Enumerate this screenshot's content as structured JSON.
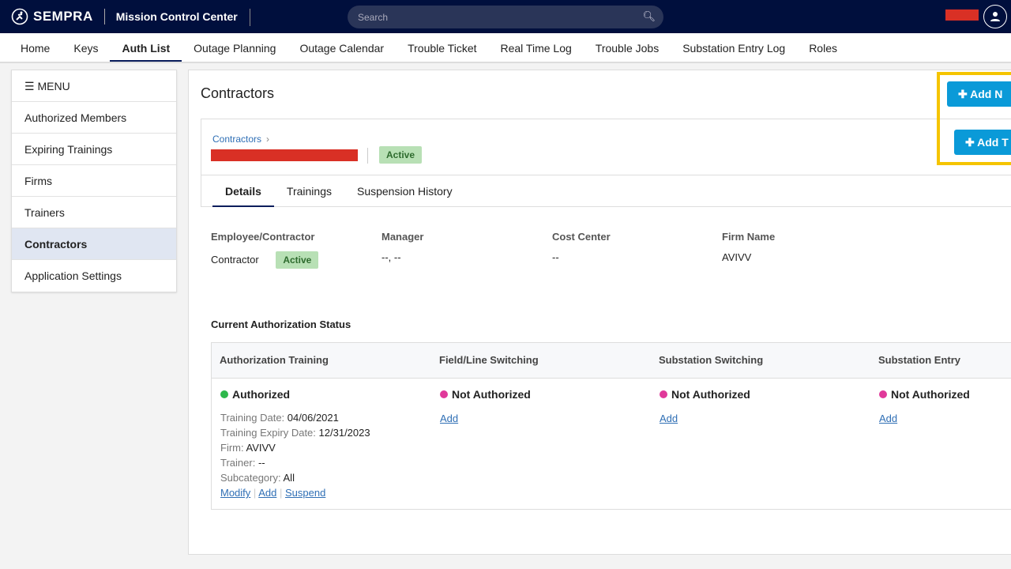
{
  "header": {
    "brand": "SEMPRA",
    "app_title": "Mission Control Center",
    "search_placeholder": "Search"
  },
  "nav": [
    "Home",
    "Keys",
    "Auth List",
    "Outage Planning",
    "Outage Calendar",
    "Trouble Ticket",
    "Real Time Log",
    "Trouble Jobs",
    "Substation Entry Log",
    "Roles"
  ],
  "sidebar": {
    "menu_label": "MENU",
    "items": [
      "Authorized Members",
      "Expiring Trainings",
      "Firms",
      "Trainers",
      "Contractors",
      "Application Settings"
    ]
  },
  "page": {
    "title": "Contractors",
    "breadcrumb": "Contractors",
    "status": "Active",
    "tabs": [
      "Details",
      "Trainings",
      "Suspension History"
    ],
    "buttons": {
      "add_new": "Add N",
      "add_t": "Add T"
    }
  },
  "details": {
    "labels": [
      "Employee/Contractor",
      "Manager",
      "Cost Center",
      "Firm Name"
    ],
    "employee_type": "Contractor",
    "status": "Active",
    "manager": "--, --",
    "cost_center": "--",
    "firm_name": "AVIVV"
  },
  "auth": {
    "title": "Current Authorization Status",
    "columns": [
      "Authorization Training",
      "Field/Line Switching",
      "Substation Switching",
      "Substation Entry"
    ],
    "training": {
      "status": "Authorized",
      "training_date_label": "Training Date:",
      "training_date": "04/06/2021",
      "expiry_label": "Training Expiry Date:",
      "expiry": "12/31/2023",
      "firm_label": "Firm:",
      "firm": "AVIVV",
      "trainer_label": "Trainer:",
      "trainer": "--",
      "subcategory_label": "Subcategory:",
      "subcategory": "All",
      "links": [
        "Modify",
        "Add",
        "Suspend"
      ]
    },
    "not_authorized": "Not Authorized",
    "add_link": "Add"
  },
  "colors": {
    "header": "#000f3d",
    "authorized": "#2db84b",
    "not_authorized": "#e0399a",
    "button": "#0a9ad8",
    "highlight": "#f5c400"
  }
}
